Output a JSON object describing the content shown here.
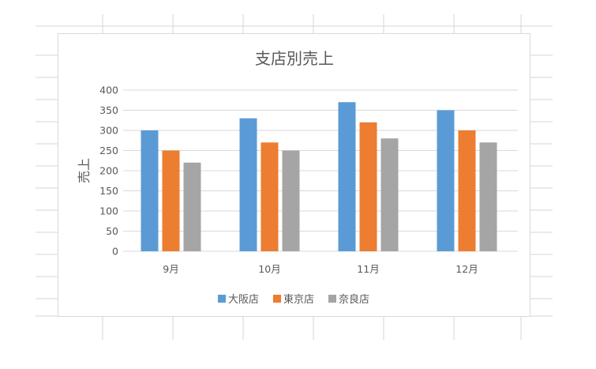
{
  "chart_data": {
    "type": "bar",
    "title": "支店別売上",
    "xlabel": "",
    "ylabel": "売上",
    "categories": [
      "9月",
      "10月",
      "11月",
      "12月"
    ],
    "series": [
      {
        "name": "大阪店",
        "color": "#5b9bd5",
        "values": [
          300,
          330,
          370,
          350
        ]
      },
      {
        "name": "東京店",
        "color": "#ed7d31",
        "values": [
          250,
          270,
          320,
          300
        ]
      },
      {
        "name": "奈良店",
        "color": "#a5a5a5",
        "values": [
          220,
          250,
          280,
          270
        ]
      }
    ],
    "ylim": [
      0,
      400
    ],
    "yticks": [
      0,
      50,
      100,
      150,
      200,
      250,
      300,
      350,
      400
    ],
    "grid": true,
    "legend_position": "bottom"
  }
}
